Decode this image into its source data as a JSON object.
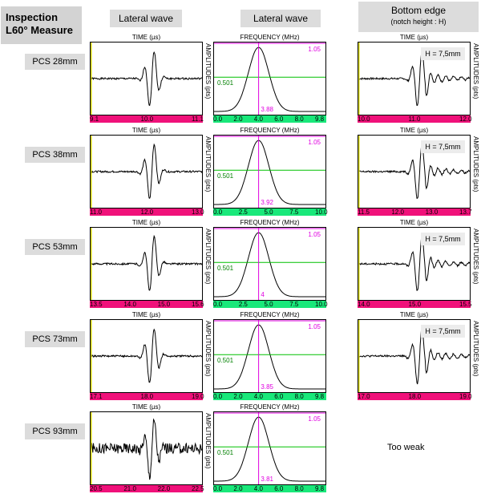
{
  "headers": {
    "title": "Inspection L60° Measure",
    "lateral1": "Lateral wave",
    "lateral2": "Lateral wave",
    "bottom_l1": "Bottom edge",
    "bottom_l2": "(notch height : H)"
  },
  "labels": {
    "time": "TIME (µs)",
    "frequency": "FREQUENCY (MHz)",
    "amplitudes": "AMPLITUDES (pts)",
    "too_weak": "Too weak"
  },
  "rows": [
    {
      "pcs": "PCS 28mm",
      "lw_ticks": [
        "9.1",
        "10.0",
        "11.1"
      ],
      "fft_ticks": [
        "0.0",
        "2.0",
        "4.0",
        "6.0",
        "8.0",
        "9.8"
      ],
      "peak_val": "1.05",
      "half_val": "0.501",
      "freq_val": "3.88",
      "be_ticks": [
        "10.0",
        "11.0",
        "12.0"
      ],
      "h_label": "H = 7,5mm"
    },
    {
      "pcs": "PCS 38mm",
      "lw_ticks": [
        "11.0",
        "12.0",
        "13.0"
      ],
      "fft_ticks": [
        "0.0",
        "2.5",
        "5.0",
        "7.5",
        "10.0"
      ],
      "peak_val": "1.05",
      "half_val": "0.501",
      "freq_val": "3.92",
      "be_ticks": [
        "11.5",
        "12.0",
        "13.0",
        "13.7"
      ],
      "h_label": "H = 7,5mm"
    },
    {
      "pcs": "PCS 53mm",
      "lw_ticks": [
        "13.5",
        "14.0",
        "15.0",
        "15.6"
      ],
      "fft_ticks": [
        "0.0",
        "2.5",
        "5.0",
        "7.5",
        "10.0"
      ],
      "peak_val": "1.05",
      "half_val": "0.501",
      "freq_val": "4",
      "be_ticks": [
        "14.0",
        "15.0",
        "15.5"
      ],
      "h_label": "H = 7,5mm"
    },
    {
      "pcs": "PCS 73mm",
      "lw_ticks": [
        "17.1",
        "18.0",
        "19.0"
      ],
      "fft_ticks": [
        "0.0",
        "2.0",
        "4.0",
        "6.0",
        "8.0",
        "9.8"
      ],
      "peak_val": "1.05",
      "half_val": "0.501",
      "freq_val": "3.85",
      "be_ticks": [
        "17.0",
        "18.0",
        "19.0"
      ],
      "h_label": "H = 7,5mm"
    },
    {
      "pcs": "PCS 93mm",
      "lw_ticks": [
        "20.5",
        "21.0",
        "22.0",
        "22.5"
      ],
      "fft_ticks": [
        "0.0",
        "2.0",
        "4.0",
        "6.0",
        "8.0",
        "9.8"
      ],
      "peak_val": "1.05",
      "half_val": "0.501",
      "freq_val": "3.81",
      "be_ticks": [],
      "h_label": ""
    }
  ],
  "colors": {
    "axis_pink": "#f0117a",
    "axis_green": "#19e87a",
    "marker_magenta": "#e000e0",
    "half_line_green": "#00c000"
  }
}
